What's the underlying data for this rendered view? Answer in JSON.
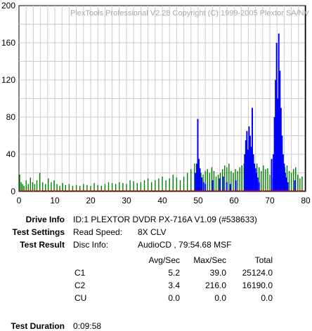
{
  "chart_data": {
    "type": "bar",
    "watermark": "PlexTools Professional V2.28 Copyright (C) 1999-2005 Plextor SA/NV",
    "xlim": [
      0,
      80
    ],
    "ylim": [
      0,
      200
    ],
    "x_ticks": [
      "0",
      "10",
      "20",
      "30",
      "40",
      "50",
      "60",
      "70",
      "80"
    ],
    "y_ticks": [
      "0",
      "40",
      "80",
      "120",
      "160",
      "200"
    ],
    "grid": true,
    "end_marker_x": 79.9,
    "series": [
      {
        "name": "C1",
        "color": "#008000",
        "values_x": [
          0.2,
          0.6,
          1.0,
          1.4,
          2.0,
          2.6,
          3.2,
          3.8,
          4.4,
          5.0,
          5.8,
          6.6,
          7.4,
          8.2,
          9.0,
          9.8,
          10.6,
          11.4,
          12.2,
          13.0,
          14.0,
          15.0,
          16.0,
          17.0,
          18.0,
          19.0,
          20.0,
          21.0,
          22.0,
          23.0,
          24.0,
          25.0,
          26.0,
          27.0,
          28.0,
          29.0,
          30.0,
          31.0,
          32.0,
          33.0,
          34.0,
          35.0,
          36.0,
          37.0,
          38.0,
          39.0,
          40.0,
          41.0,
          42.0,
          43.0,
          44.0,
          45.0,
          46.0,
          47.0,
          48.0,
          49.0,
          49.6,
          50.2,
          50.8,
          51.4,
          52.0,
          52.6,
          53.2,
          53.8,
          54.4,
          55.0,
          55.6,
          56.2,
          56.8,
          57.4,
          58.0,
          58.6,
          59.2,
          59.8,
          60.4,
          61.0,
          61.6,
          62.2,
          62.8,
          63.4,
          64.0,
          64.6,
          65.2,
          65.8,
          66.4,
          67.0,
          67.6,
          68.2,
          68.8,
          69.4,
          70.0,
          70.6,
          71.2,
          71.8,
          72.4,
          73.0,
          73.6,
          74.2,
          74.8,
          75.4,
          76.0,
          76.6,
          77.2,
          77.8,
          78.4,
          79.0
        ],
        "values_y": [
          18,
          10,
          8,
          6,
          12,
          8,
          15,
          10,
          8,
          12,
          20,
          10,
          8,
          14,
          10,
          12,
          8,
          6,
          9,
          7,
          8,
          6,
          7,
          6,
          8,
          7,
          6,
          9,
          7,
          6,
          8,
          10,
          9,
          8,
          10,
          9,
          8,
          12,
          11,
          9,
          10,
          12,
          14,
          10,
          12,
          14,
          16,
          12,
          14,
          18,
          15,
          12,
          16,
          20,
          24,
          30,
          22,
          25,
          20,
          18,
          22,
          24,
          20,
          26,
          22,
          16,
          18,
          20,
          24,
          28,
          26,
          30,
          22,
          20,
          24,
          22,
          26,
          28,
          30,
          35,
          28,
          26,
          32,
          24,
          30,
          26,
          22,
          28,
          24,
          25,
          18,
          14,
          20,
          22,
          18,
          16,
          20,
          26,
          28,
          22,
          20,
          24,
          26,
          18,
          14,
          16
        ]
      },
      {
        "name": "C2",
        "color": "#0000ff",
        "values_x": [
          49.2,
          49.6,
          49.9,
          50.2,
          50.5,
          51.0,
          51.5,
          52.0,
          54.0,
          56.0,
          57.0,
          58.0,
          59.0,
          60.5,
          63.0,
          63.3,
          63.6,
          63.9,
          64.2,
          64.5,
          64.8,
          65.1,
          65.4,
          65.7,
          66.0,
          66.3,
          66.6,
          67.0,
          70.5,
          71.0,
          71.3,
          71.6,
          71.9,
          72.2,
          72.5,
          72.8,
          73.1,
          73.4,
          73.7,
          74.0,
          74.3,
          74.6,
          75.0,
          77.0
        ],
        "values_y": [
          20,
          30,
          78,
          35,
          25,
          15,
          10,
          8,
          12,
          14,
          16,
          10,
          8,
          12,
          40,
          55,
          65,
          45,
          70,
          60,
          48,
          90,
          40,
          30,
          25,
          20,
          15,
          10,
          35,
          40,
          80,
          120,
          160,
          100,
          170,
          130,
          90,
          60,
          40,
          30,
          20,
          15,
          10,
          12
        ]
      }
    ]
  },
  "report": {
    "drive_info_label": "Drive Info",
    "drive_info_value": "ID:1 PLEXTOR DVDR PX-716A V1.09 (#538633)",
    "test_settings_label": "Test Settings",
    "read_speed_label": "Read Speed:",
    "read_speed_value": "8X CLV",
    "test_result_label": "Test Result",
    "disc_info_label": "Disc Info:",
    "disc_info_value": "AudioCD , 79:54.68 MSF",
    "col_avg": "Avg/Sec",
    "col_max": "Max/Sec",
    "col_total": "Total",
    "rows": [
      {
        "name": "C1",
        "avg": "5.2",
        "max": "39.0",
        "total": "25124.0"
      },
      {
        "name": "C2",
        "avg": "3.4",
        "max": "216.0",
        "total": "16190.0"
      },
      {
        "name": "CU",
        "avg": "0.0",
        "max": "0.0",
        "total": "0.0"
      }
    ],
    "test_duration_label": "Test Duration",
    "test_duration_value": "0:09:58"
  }
}
